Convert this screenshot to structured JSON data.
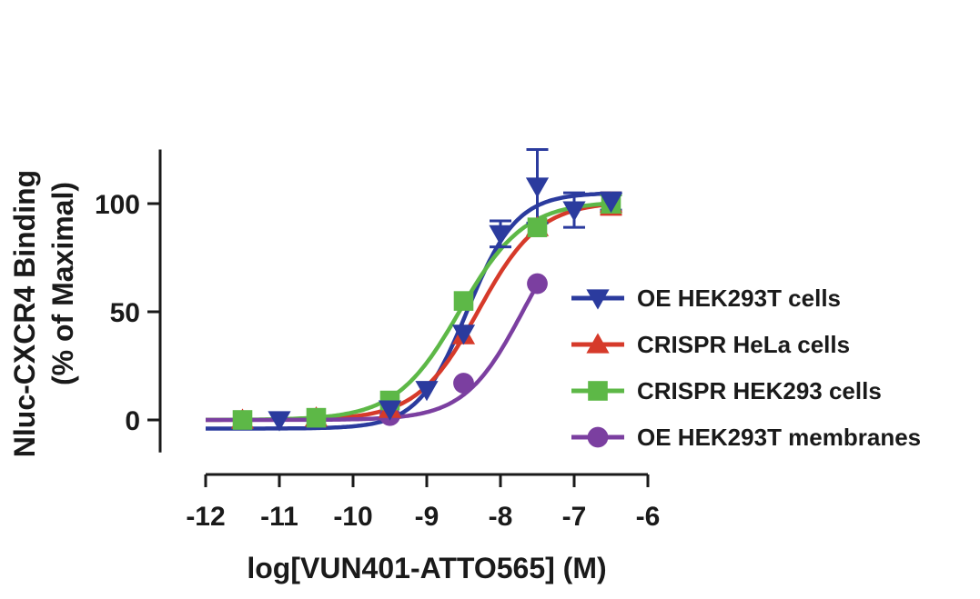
{
  "chart_data": {
    "type": "scatter",
    "title": "",
    "xlabel": "log[VUN401-ATTO565] (M)",
    "ylabel_line1": "Nluc-CXCR4 Binding",
    "ylabel_line2": "(% of Maximal)",
    "xlim": [
      -12,
      -6
    ],
    "ylim": [
      -15,
      125
    ],
    "x_ticks": [
      "-12",
      "-11",
      "-10",
      "-9",
      "-8",
      "-7",
      "-6"
    ],
    "x_tick_values": [
      -12,
      -11,
      -10,
      -9,
      -8,
      -7,
      -6
    ],
    "y_ticks": [
      "0",
      "50",
      "100"
    ],
    "y_tick_values": [
      0,
      50,
      100
    ],
    "grid": false,
    "legend_position": "right",
    "series": [
      {
        "name": "OE HEK293T cells",
        "color": "#2b3b9e",
        "marker": "triangle-down",
        "x": [
          -11,
          -9.5,
          -9,
          -8.5,
          -8,
          -7.5,
          -7,
          -6.5
        ],
        "y": [
          0,
          5,
          14,
          40,
          86,
          108,
          97,
          101
        ],
        "error": [
          0,
          0,
          0,
          0,
          6,
          17,
          8,
          4
        ],
        "curve": {
          "bottom": -4,
          "top": 105,
          "logec50": -8.45,
          "hill": 1.3
        }
      },
      {
        "name": "CRISPR HeLa cells",
        "color": "#d63a2a",
        "marker": "triangle-up",
        "x": [
          -11.5,
          -10.5,
          -9.5,
          -8.5,
          -7.5,
          -6.5
        ],
        "y": [
          0,
          1,
          5,
          39,
          89,
          100
        ],
        "error": [
          0,
          0,
          0,
          0,
          0,
          5
        ],
        "curve": {
          "bottom": 0,
          "top": 101,
          "logec50": -8.3,
          "hill": 1.05
        }
      },
      {
        "name": "CRISPR HEK293 cells",
        "color": "#5db847",
        "marker": "square",
        "x": [
          -11.5,
          -10.5,
          -9.5,
          -8.5,
          -7.5,
          -6.5
        ],
        "y": [
          0,
          1,
          9,
          55,
          89,
          100
        ],
        "error": [
          0,
          0,
          0,
          0,
          0,
          4
        ],
        "curve": {
          "bottom": 0,
          "top": 101,
          "logec50": -8.55,
          "hill": 1.0
        }
      },
      {
        "name": "OE HEK293T membranes",
        "color": "#7b3fa0",
        "marker": "circle",
        "x": [
          -9.5,
          -8.5,
          -7.5
        ],
        "y": [
          2,
          17,
          63
        ],
        "error": [
          0,
          0,
          0
        ],
        "curve": {
          "bottom": 0,
          "top": 100,
          "logec50": -7.7,
          "hill": 1.1
        }
      }
    ]
  }
}
